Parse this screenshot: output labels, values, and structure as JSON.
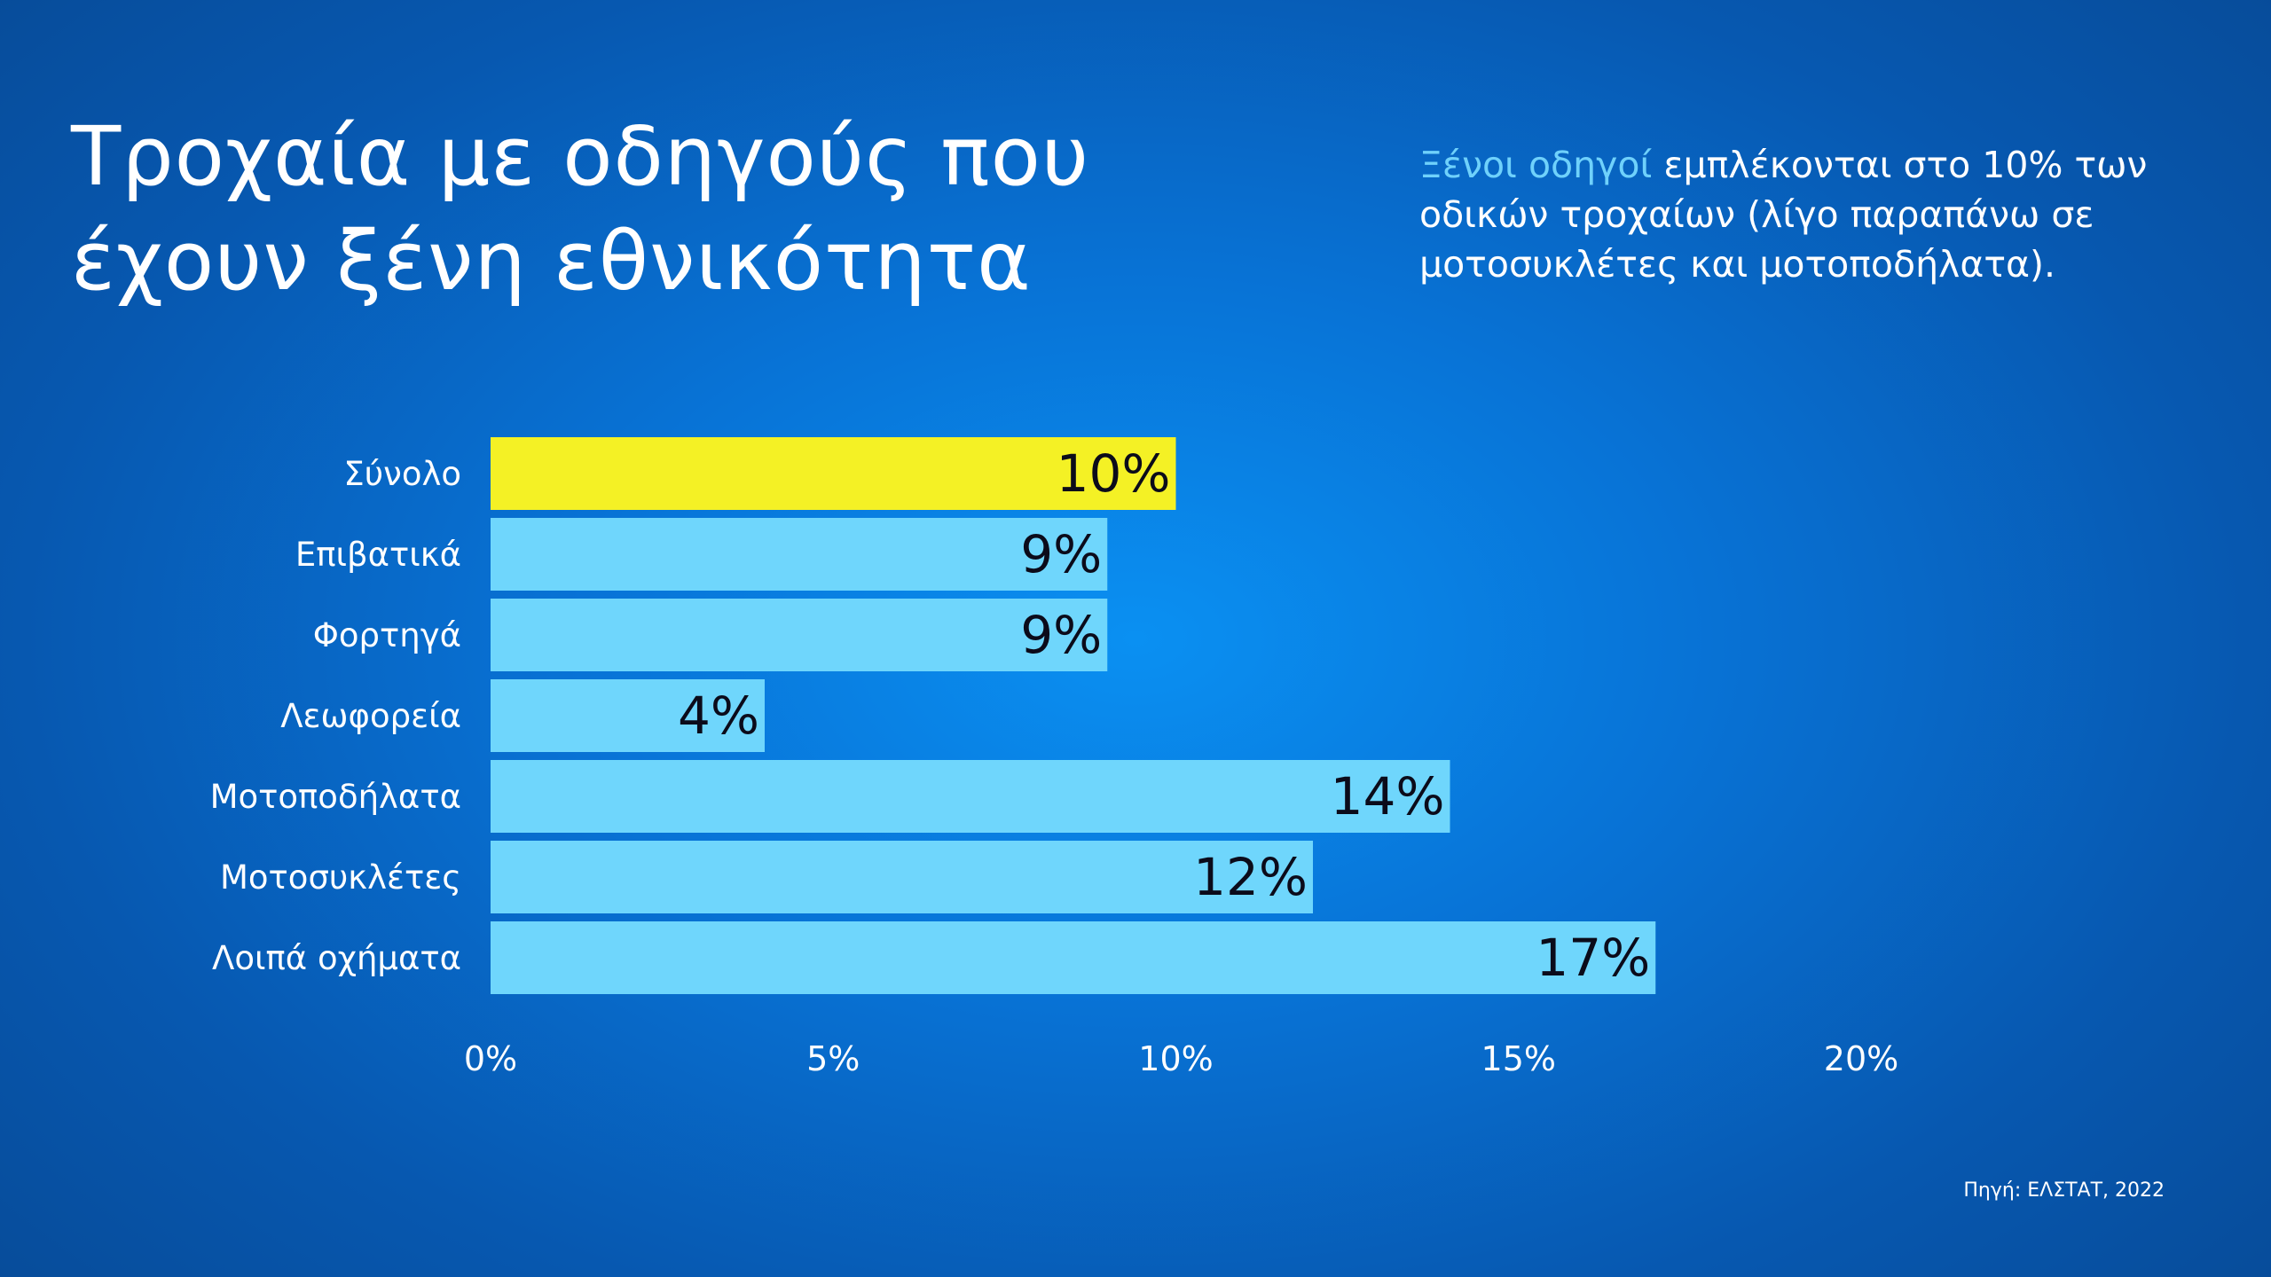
{
  "title_lines": [
    "Τροχαία με οδηγούς που",
    "έχουν ξένη εθνικότητα"
  ],
  "subtitle": {
    "highlight": "Ξένοι οδηγοί",
    "rest": " εμπλέκονται στο 10% των οδικών τροχαίων (λίγο παραπάνω σε μοτοσυκλέτες και μοτοποδήλατα)."
  },
  "source": "Πηγή: ΕΛΣΤΑΤ, 2022",
  "colors": {
    "highlight_bar": "#f4f125",
    "bar": "#6fd6fc",
    "subtitle_accent": "#6fd1fb",
    "value_label": "#0b0b1a"
  },
  "chart_data": {
    "type": "bar",
    "orientation": "horizontal",
    "title": "Τροχαία με οδηγούς που έχουν ξένη εθνικότητα",
    "xlabel": "",
    "ylabel": "",
    "categories": [
      "Σύνολο",
      "Επιβατικά",
      "Φορτηγά",
      "Λεωφορεία",
      "Μοτοποδήλατα",
      "Μοτοσυκλέτες",
      "Λοιπά οχήματα"
    ],
    "values": [
      10,
      9,
      9,
      4,
      14,
      12,
      17
    ],
    "value_labels": [
      "10%",
      "9%",
      "9%",
      "4%",
      "14%",
      "12%",
      "17%"
    ],
    "highlight_index": 0,
    "xlim": [
      0,
      20
    ],
    "xticks": [
      0,
      5,
      10,
      15,
      20
    ],
    "xtick_labels": [
      "0%",
      "5%",
      "10%",
      "15%",
      "20%"
    ],
    "grid": false,
    "legend": "none"
  }
}
